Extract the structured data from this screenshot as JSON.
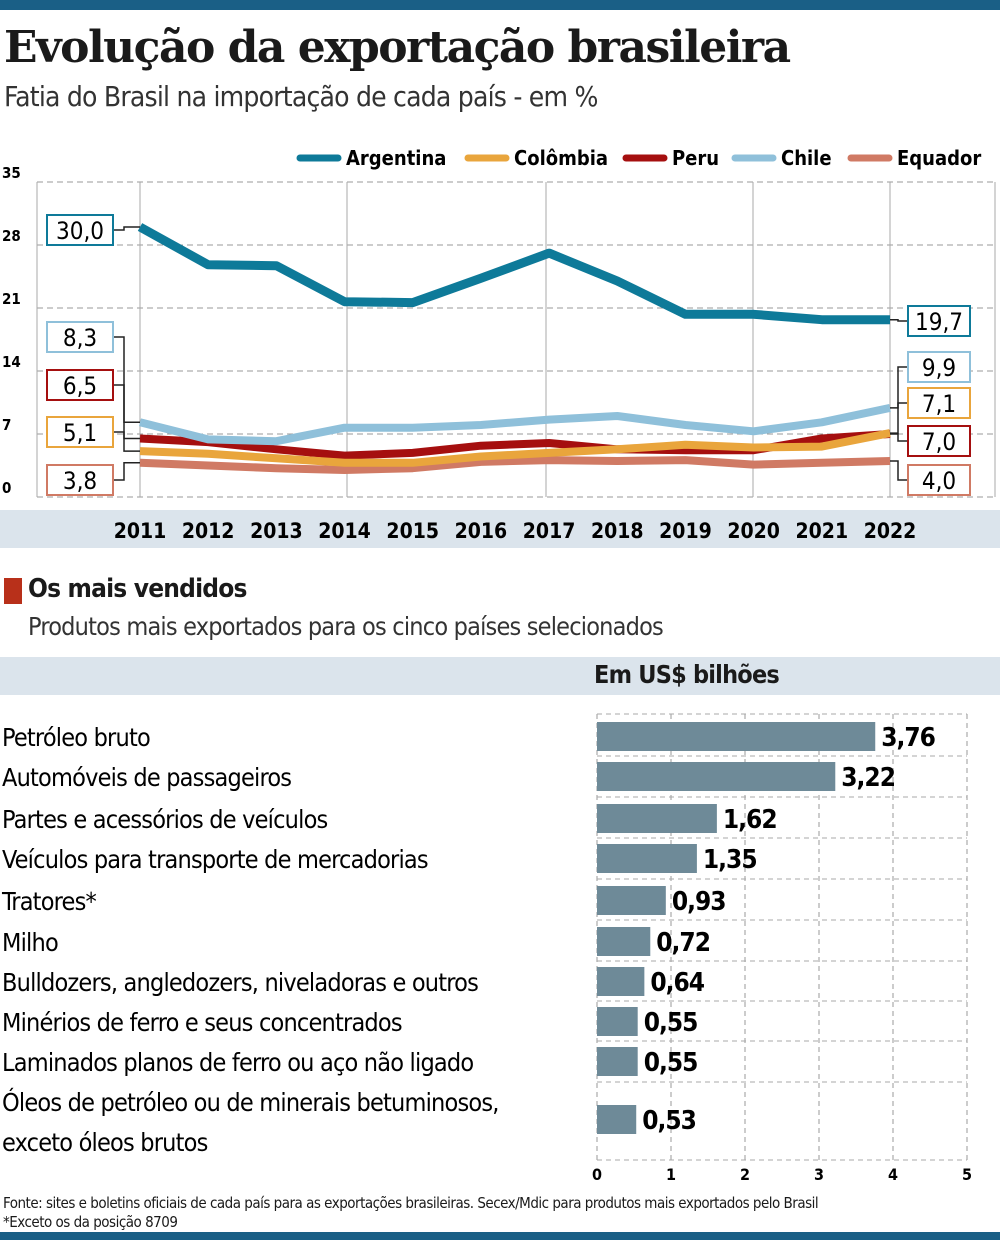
{
  "title": "Evolução da exportação brasileira",
  "subtitle": "Fatia do Brasil na importação de cada país - em %",
  "colors": {
    "accent": "#1a5f86",
    "band": "#dbe4ec",
    "bar": "#6e8a98",
    "section_mark": "#b8301a"
  },
  "chart_data": [
    {
      "type": "line",
      "ylim": [
        0,
        35
      ],
      "yticks": [
        "0",
        "7",
        "14",
        "21",
        "28",
        "35"
      ],
      "x": [
        "2011",
        "2012",
        "2013",
        "2014",
        "2015",
        "2016",
        "2017",
        "2018",
        "2019",
        "2020",
        "2021",
        "2022"
      ],
      "legend_position": "top-right",
      "series": [
        {
          "name": "Argentina",
          "color": "#0e7a99",
          "values": [
            30.0,
            25.8,
            25.7,
            21.7,
            21.6,
            24.3,
            27.1,
            24.0,
            20.3,
            20.3,
            19.7,
            19.7
          ],
          "start_label": "30,0",
          "end_label": "19,7"
        },
        {
          "name": "Colômbia",
          "color": "#e9a53c",
          "values": [
            5.1,
            4.8,
            4.3,
            3.8,
            3.8,
            4.5,
            4.9,
            5.3,
            5.8,
            5.5,
            5.6,
            7.1
          ],
          "start_label": "5,1",
          "end_label": "7,1"
        },
        {
          "name": "Peru",
          "color": "#a50f0f",
          "values": [
            6.5,
            6.1,
            5.3,
            4.6,
            4.9,
            5.7,
            6.0,
            5.3,
            5.2,
            5.2,
            6.5,
            7.0
          ],
          "start_label": "6,5",
          "end_label": "7,0"
        },
        {
          "name": "Chile",
          "color": "#8fc0da",
          "values": [
            8.3,
            6.4,
            6.2,
            7.7,
            7.7,
            8.0,
            8.6,
            9.0,
            8.0,
            7.3,
            8.3,
            9.9
          ],
          "start_label": "8,3",
          "end_label": "9,9"
        },
        {
          "name": "Equador",
          "color": "#d07a64",
          "values": [
            3.8,
            3.5,
            3.2,
            3.0,
            3.2,
            3.9,
            4.1,
            4.0,
            4.1,
            3.6,
            3.8,
            4.0
          ],
          "start_label": "3,8",
          "end_label": "4,0"
        }
      ]
    },
    {
      "type": "bar",
      "title": "Os mais vendidos",
      "subtitle": "Produtos mais exportados para os cinco países selecionados",
      "unit_label": "Em US$ bilhões",
      "xlim": [
        0,
        5
      ],
      "xticks": [
        "0",
        "1",
        "2",
        "3",
        "4",
        "5"
      ],
      "categories": [
        "Petróleo bruto",
        "Automóveis de passageiros",
        "Partes e acessórios de veículos",
        "Veículos para transporte de mercadorias",
        "Tratores*",
        "Milho",
        "Bulldozers, angledozers, niveladoras e outros",
        "Minérios de ferro e seus concentrados",
        "Laminados planos de ferro ou aço não ligado",
        "Óleos de petróleo ou de minerais betuminosos, exceto óleos brutos"
      ],
      "category_lines": [
        [
          "Petróleo bruto"
        ],
        [
          "Automóveis de passageiros"
        ],
        [
          "Partes e acessórios de veículos"
        ],
        [
          "Veículos para transporte de mercadorias"
        ],
        [
          "Tratores*"
        ],
        [
          "Milho"
        ],
        [
          "Bulldozers, angledozers, niveladoras e outros"
        ],
        [
          "Minérios de ferro e seus concentrados"
        ],
        [
          "Laminados planos de ferro ou aço não ligado"
        ],
        [
          "Óleos de petróleo ou de minerais betuminosos,",
          "exceto óleos brutos"
        ]
      ],
      "values": [
        3.76,
        3.22,
        1.62,
        1.35,
        0.93,
        0.72,
        0.64,
        0.55,
        0.55,
        0.53
      ],
      "value_labels": [
        "3,76",
        "3,22",
        "1,62",
        "1,35",
        "0,93",
        "0,72",
        "0,64",
        "0,55",
        "0,55",
        "0,53"
      ]
    }
  ],
  "footer": {
    "source": "Fonte: sites e boletins oficiais de cada país para as exportações brasileiras. Secex/Mdic para produtos mais exportados pelo Brasil",
    "note": "*Exceto os da posição 8709"
  }
}
